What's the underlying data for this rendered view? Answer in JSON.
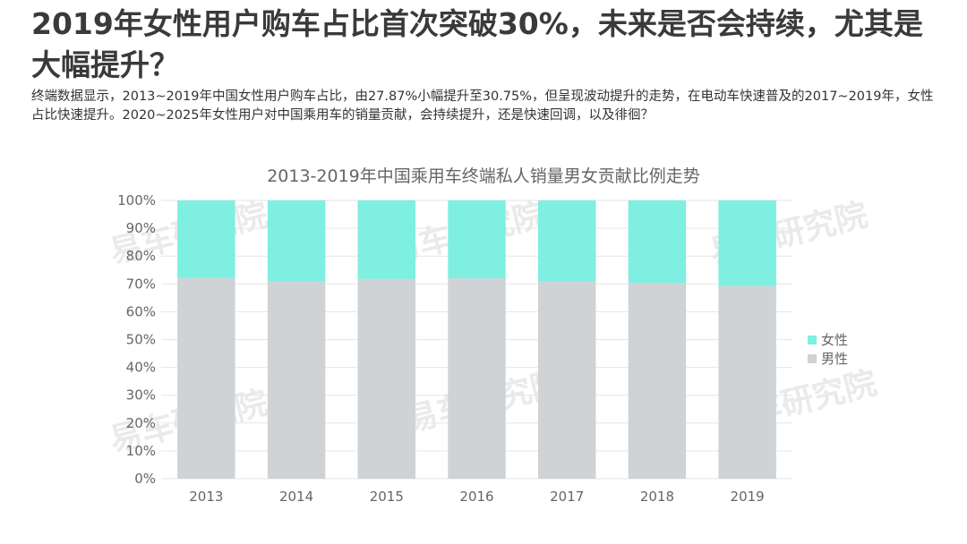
{
  "headline": "2019年女性用户购车占比首次突破30%，未来是否会持续，尤其是大幅提升？",
  "subtext": "终端数据显示，2013~2019年中国女性用户购车占比，由27.87%小幅提升至30.75%，但呈现波动提升的走势，在电动车快速普及的2017~2019年，女性占比快速提升。2020~2025年女性用户对中国乘用车的销量贡献，会持续提升，还是快速回调，以及徘徊？",
  "watermark": "易车研究院",
  "colors": {
    "female": "#7eefe0",
    "male": "#cfd3d6",
    "grid": "#e6e6e6"
  },
  "chart_data": {
    "type": "bar",
    "stacked": true,
    "percent": true,
    "title": "2013-2019年中国乘用车终端私人销量男女贡献比例走势",
    "categories": [
      "2013",
      "2014",
      "2015",
      "2016",
      "2017",
      "2018",
      "2019"
    ],
    "series": [
      {
        "name": "男性",
        "values": [
          72.13,
          70.9,
          71.8,
          72.0,
          70.8,
          70.3,
          69.25
        ],
        "color": "#cfd3d6"
      },
      {
        "name": "女性",
        "values": [
          27.87,
          29.1,
          28.2,
          28.0,
          29.2,
          29.7,
          30.75
        ],
        "color": "#7eefe0"
      }
    ],
    "ylim": [
      0,
      100
    ],
    "yticks": [
      "0%",
      "10%",
      "20%",
      "30%",
      "40%",
      "50%",
      "60%",
      "70%",
      "80%",
      "90%",
      "100%"
    ],
    "legend": [
      "女性",
      "男性"
    ],
    "legend_position": "right",
    "grid": true
  }
}
